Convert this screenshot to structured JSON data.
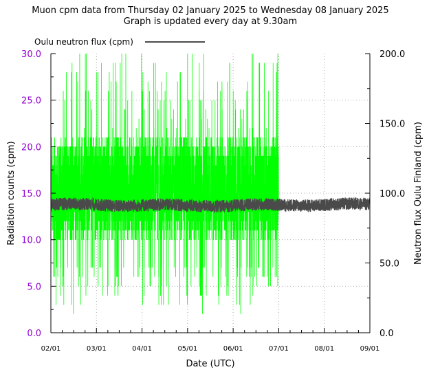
{
  "chart_data": {
    "type": "line",
    "title_lines": [
      "Muon cpm data from Thursday 02 January 2025 to Wednesday 08 January 2025",
      "Graph is updated every day at 9.30am"
    ],
    "xlabel": "Date (UTC)",
    "ylabel_left": "Radiation counts (cpm)",
    "ylabel_right": "Neutron flux Oulu Finland (cpm)",
    "legend": {
      "label": "Oulu neutron flux (cpm)",
      "placement": "top-left, above plot"
    },
    "x_ticks": [
      "02/01",
      "03/01",
      "04/01",
      "05/01",
      "06/01",
      "07/01",
      "08/01",
      "09/01"
    ],
    "x_range_days": [
      2,
      9
    ],
    "y_left_ticks": [
      "0.0",
      "5.0",
      "10.0",
      "15.0",
      "20.0",
      "25.0",
      "30.0"
    ],
    "y_left_range": [
      0,
      30
    ],
    "y_right_ticks": [
      "0.0",
      "50.0",
      "100.0",
      "150.0",
      "200.0"
    ],
    "y_right_range": [
      0,
      200
    ],
    "grid": true,
    "colors": {
      "muon": "#00ff00",
      "neutron": "#4a4a4a",
      "left_axis": "#9400d3",
      "grid": "#aaaaaa",
      "axis": "#000000"
    },
    "series": [
      {
        "axis": "left",
        "x_range_days": [
          2,
          7
        ],
        "typical_range_cpm": [
          10,
          21
        ],
        "extreme_range_cpm": [
          2,
          30
        ],
        "center_cpm": 14.5
      },
      {
        "name": "Oulu neutron flux (cpm)",
        "axis": "right",
        "x_range_days": [
          2,
          9
        ],
        "center_cpm": 91.5,
        "band_cpm": [
          87,
          96
        ]
      }
    ]
  }
}
